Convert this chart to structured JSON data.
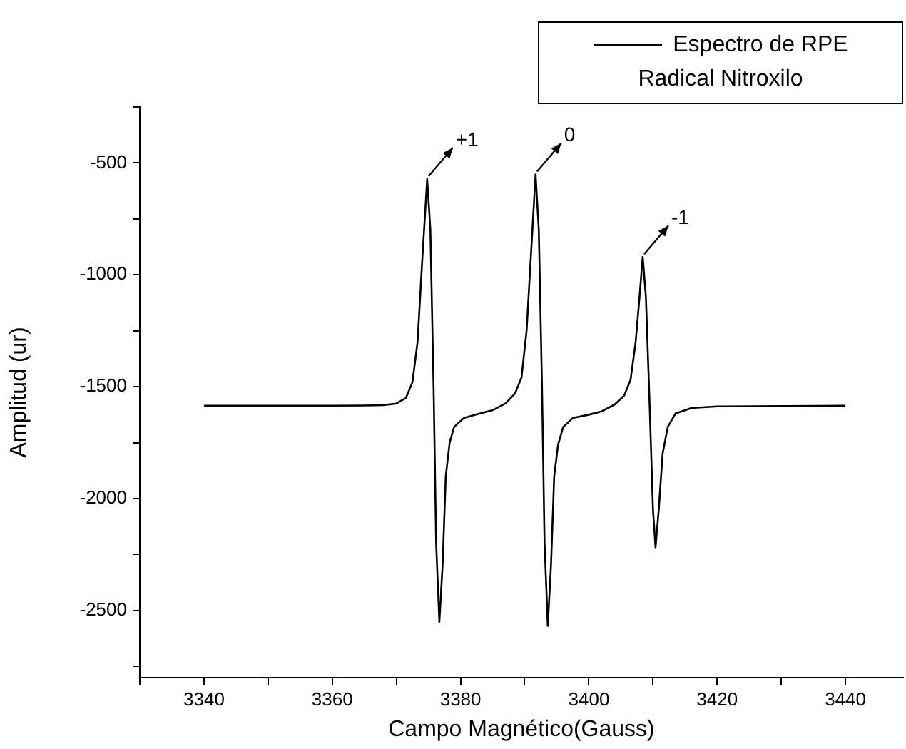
{
  "chart_data": {
    "type": "line",
    "xlabel": "Campo Magnético(Gauss)",
    "ylabel": "Amplitud (ur)",
    "x": [
      3340,
      3360,
      3365,
      3368,
      3370,
      3371.5,
      3372.5,
      3373.3,
      3374,
      3374.8,
      3375.3,
      3375.8,
      3376.2,
      3376.7,
      3377.2,
      3377.7,
      3378.3,
      3379,
      3380.5,
      3383,
      3385,
      3387,
      3388.5,
      3389.5,
      3390.3,
      3391,
      3391.7,
      3392.2,
      3392.7,
      3393.1,
      3393.6,
      3394.1,
      3394.6,
      3395.2,
      3396,
      3397.5,
      3400,
      3402,
      3404,
      3405.5,
      3406.5,
      3407.3,
      3407.9,
      3408.4,
      3408.9,
      3409.5,
      3410,
      3410.4,
      3410.9,
      3411.5,
      3412.3,
      3413.5,
      3416,
      3420,
      3440
    ],
    "series": [
      {
        "name": "Espectro de RPE Radical Nitroxilo",
        "color": "#000000",
        "values": [
          -1585,
          -1585,
          -1584,
          -1582,
          -1575,
          -1550,
          -1480,
          -1300,
          -950,
          -572,
          -800,
          -1500,
          -2200,
          -2551,
          -2300,
          -1900,
          -1750,
          -1680,
          -1640,
          -1620,
          -1605,
          -1575,
          -1530,
          -1460,
          -1250,
          -900,
          -551,
          -800,
          -1500,
          -2200,
          -2569,
          -2300,
          -1900,
          -1760,
          -1680,
          -1640,
          -1625,
          -1610,
          -1580,
          -1540,
          -1470,
          -1300,
          -1100,
          -920,
          -1100,
          -1600,
          -2050,
          -2218,
          -2050,
          -1800,
          -1680,
          -1620,
          -1595,
          -1588,
          -1585
        ]
      }
    ],
    "xlim": [
      3330,
      3449
    ],
    "ylim": [
      -2800,
      -250
    ],
    "xticks": [
      {
        "value": 3330,
        "label": null
      },
      3340,
      {
        "value": 3350,
        "label": null
      },
      3360,
      {
        "value": 3370,
        "label": null
      },
      3380,
      {
        "value": 3390,
        "label": null
      },
      3400,
      {
        "value": 3410,
        "label": null
      },
      3420,
      {
        "value": 3430,
        "label": null
      },
      3440
    ],
    "yticks": [
      {
        "value": -2750,
        "label": null
      },
      -2500,
      {
        "value": -2250,
        "label": null
      },
      -2000,
      {
        "value": -1750,
        "label": null
      },
      -1500,
      {
        "value": -1250,
        "label": null
      },
      -1000,
      {
        "value": -750,
        "label": null
      },
      -500,
      {
        "value": -250,
        "label": null
      }
    ],
    "annotations": [
      {
        "text": "+1",
        "x": 3374.8,
        "y": -572
      },
      {
        "text": "0",
        "x": 3391.7,
        "y": -551
      },
      {
        "text": "-1",
        "x": 3408.4,
        "y": -920
      }
    ],
    "legend": "top right",
    "grid": false,
    "marker": "none",
    "line_style": "solid"
  }
}
